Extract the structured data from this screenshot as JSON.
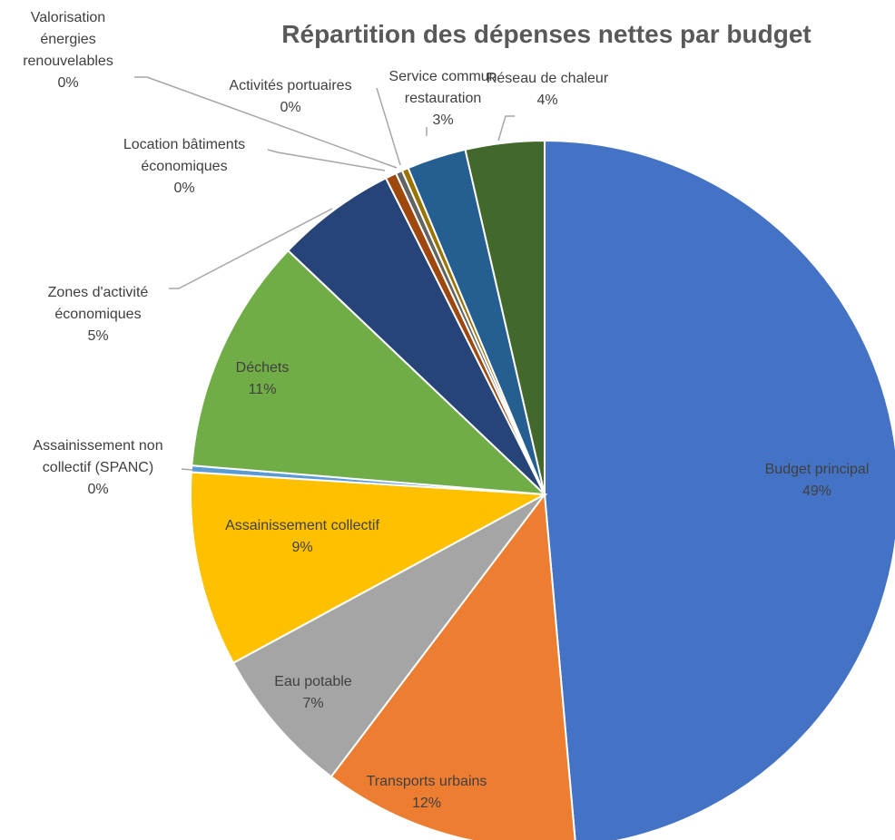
{
  "chart_data": {
    "type": "pie",
    "title": "Répartition des dépenses nettes par budget",
    "categories": [
      "Budget principal",
      "Transports urbains",
      "Eau potable",
      "Assainissement collectif",
      "Assainissement non collectif (SPANC)",
      "Déchets",
      "Zones d'activité économiques",
      "Location bâtiments économiques",
      "Valorisation énergies renouvelables",
      "Activités portuaires",
      "Service commun restauration",
      "Réseau de chaleur"
    ],
    "values": [
      48.6,
      11.7,
      6.8,
      8.9,
      0.3,
      10.8,
      5.5,
      0.5,
      0.3,
      0.3,
      2.7,
      3.6
    ],
    "value_labels": [
      "49%",
      "12%",
      "7%",
      "9%",
      "0%",
      "11%",
      "5%",
      "0%",
      "0%",
      "0%",
      "3%",
      "4%"
    ],
    "colors": [
      "#4472c4",
      "#ed7d31",
      "#a5a5a5",
      "#ffc000",
      "#5b9bd5",
      "#70ad47",
      "#264478",
      "#9e480e",
      "#636363",
      "#997300",
      "#255e91",
      "#43682b"
    ]
  }
}
